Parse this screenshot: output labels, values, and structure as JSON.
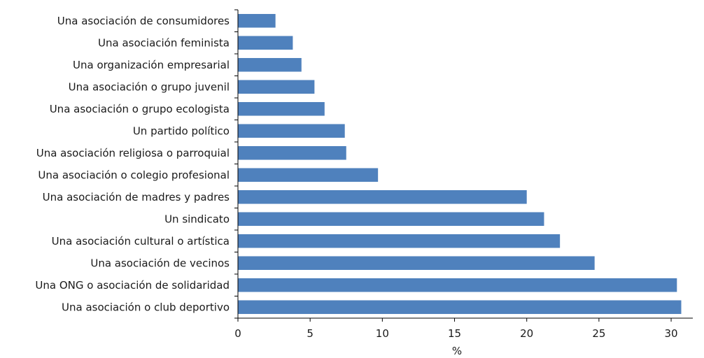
{
  "chart_data": {
    "type": "bar",
    "orientation": "horizontal",
    "categories": [
      "Una asociación de consumidores",
      "Una asociación feminista",
      "Una organización empresarial",
      "Una asociación o grupo juvenil",
      "Una asociación o grupo ecologista",
      "Un partido político",
      "Una asociación religiosa o parroquial",
      "Una asociación o colegio profesional",
      "Una asociación de madres y padres",
      "Un sindicato",
      "Una asociación cultural o artística",
      "Una asociación de vecinos",
      "Una ONG o asociación de solidaridad",
      "Una asociación o club deportivo"
    ],
    "values": [
      2.6,
      3.8,
      4.4,
      5.3,
      6.0,
      7.4,
      7.5,
      9.7,
      20.0,
      21.2,
      22.3,
      24.7,
      30.4,
      30.7
    ],
    "title": "",
    "xlabel": "%",
    "ylabel": "",
    "xlim": [
      0,
      31.5
    ],
    "xticks": [
      0,
      5,
      10,
      15,
      20,
      25,
      30
    ],
    "grid": false,
    "bar_color": "#4f81bd"
  }
}
